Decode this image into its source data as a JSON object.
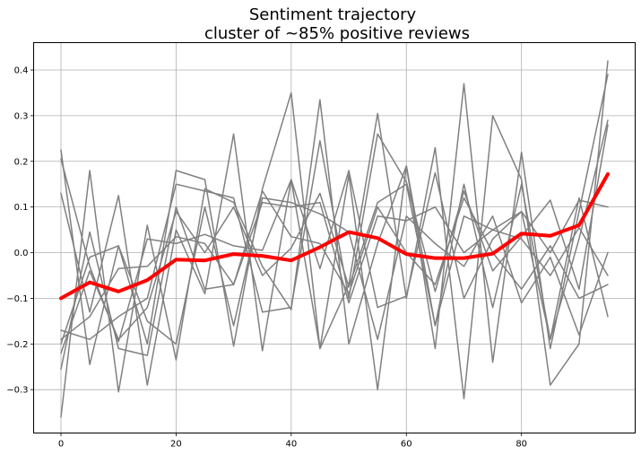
{
  "chart_data": {
    "type": "line",
    "title": "Sentiment trajectory",
    "subtitle": "cluster of ~85% positive reviews",
    "xlabel": "",
    "ylabel": "",
    "xlim": [
      -4.75,
      99.75
    ],
    "ylim": [
      -0.395,
      0.46
    ],
    "x_ticks": [
      0,
      20,
      40,
      60,
      80
    ],
    "y_ticks": [
      -0.3,
      -0.2,
      -0.1,
      0.0,
      0.1,
      0.2,
      0.3,
      0.4
    ],
    "y_tick_labels": [
      "−0.3",
      "−0.2",
      "−0.1",
      "0.0",
      "0.1",
      "0.2",
      "0.3",
      "0.4"
    ],
    "grid": true,
    "x": [
      0,
      5,
      10,
      15,
      20,
      25,
      30,
      35,
      40,
      45,
      50,
      55,
      60,
      65,
      70,
      75,
      80,
      85,
      90,
      95
    ],
    "series": [
      {
        "role": "review",
        "color": "#808080",
        "values": [
          0.225,
          -0.245,
          0.015,
          -0.2,
          0.18,
          0.16,
          -0.205,
          0.14,
          0.35,
          -0.21,
          -0.07,
          0.305,
          -0.1,
          0.23,
          -0.32,
          0.3,
          0.16,
          -0.29,
          -0.2,
          0.42
        ]
      },
      {
        "role": "review",
        "color": "#808080",
        "values": [
          0.13,
          -0.13,
          0.125,
          -0.29,
          0.05,
          -0.09,
          0.26,
          -0.215,
          0.16,
          -0.21,
          0.17,
          -0.3,
          0.19,
          -0.21,
          0.37,
          -0.24,
          0.22,
          -0.21,
          0.09,
          0.39
        ]
      },
      {
        "role": "review",
        "color": "#808080",
        "values": [
          -0.36,
          0.18,
          -0.305,
          0.06,
          -0.235,
          0.14,
          0.11,
          -0.03,
          -0.125,
          0.335,
          -0.2,
          0.02,
          0.19,
          -0.16,
          0.15,
          -0.12,
          0.15,
          -0.19,
          0.12,
          -0.14
        ]
      },
      {
        "role": "review",
        "color": "#808080",
        "values": [
          0.205,
          -0.03,
          -0.195,
          0.03,
          0.02,
          0.04,
          0.015,
          0.005,
          0.16,
          -0.035,
          0.18,
          -0.12,
          -0.095,
          0.175,
          -0.1,
          0.03,
          0.09,
          -0.19,
          0.03,
          0.29
        ]
      },
      {
        "role": "review",
        "color": "#808080",
        "values": [
          -0.17,
          -0.19,
          -0.14,
          -0.1,
          0.15,
          0.135,
          0.12,
          -0.13,
          -0.12,
          0.245,
          -0.1,
          0.26,
          0.155,
          -0.085,
          0.135,
          -0.04,
          0.035,
          0.115,
          -0.08,
          0.28
        ]
      },
      {
        "role": "review",
        "color": "#808080",
        "values": [
          -0.255,
          0.045,
          -0.21,
          -0.225,
          0.1,
          -0.08,
          -0.07,
          0.135,
          0.035,
          0.02,
          -0.09,
          0.1,
          0.0,
          -0.07,
          0.12,
          0.0,
          -0.08,
          0.015,
          -0.1,
          -0.07
        ]
      },
      {
        "role": "review",
        "color": "#808080",
        "values": [
          -0.2,
          -0.01,
          0.015,
          -0.15,
          -0.2,
          0.1,
          -0.16,
          0.12,
          0.11,
          0.085,
          0.045,
          -0.19,
          0.08,
          0.02,
          -0.03,
          0.08,
          -0.11,
          -0.01,
          -0.18,
          0.0
        ]
      },
      {
        "role": "review",
        "color": "#808080",
        "values": [
          -0.22,
          -0.04,
          -0.19,
          -0.12,
          0.09,
          0.0,
          0.1,
          -0.05,
          0.01,
          0.13,
          -0.075,
          0.11,
          0.15,
          -0.16,
          0.08,
          0.05,
          0.03,
          -0.05,
          0.055,
          -0.05
        ]
      },
      {
        "role": "review",
        "color": "#808080",
        "values": [
          -0.19,
          -0.14,
          -0.035,
          -0.03,
          0.035,
          0.02,
          -0.07,
          0.11,
          0.1,
          0.11,
          -0.11,
          0.08,
          0.07,
          0.1,
          0.0,
          0.05,
          0.09,
          0.0,
          0.115,
          0.1
        ]
      },
      {
        "role": "average",
        "color": "#ff0000",
        "values": [
          -0.1,
          -0.065,
          -0.085,
          -0.06,
          -0.015,
          -0.017,
          -0.003,
          -0.007,
          -0.017,
          0.012,
          0.045,
          0.032,
          -0.003,
          -0.012,
          -0.012,
          -0.002,
          0.042,
          0.037,
          0.06,
          0.172
        ]
      }
    ]
  }
}
